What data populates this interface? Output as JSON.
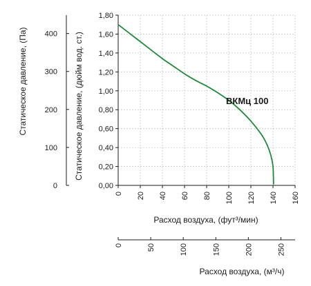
{
  "chart_data": {
    "type": "line",
    "series": [
      {
        "name": "ВКМц 100",
        "color": "#1e8a3a",
        "x": [
          0,
          10,
          20,
          30,
          40,
          50,
          60,
          70,
          80,
          90,
          100,
          110,
          120,
          130,
          135,
          138,
          140,
          140.5
        ],
        "values": [
          1.7,
          1.61,
          1.52,
          1.43,
          1.34,
          1.26,
          1.18,
          1.11,
          1.05,
          0.98,
          0.9,
          0.8,
          0.68,
          0.53,
          0.42,
          0.32,
          0.2,
          0.01
        ]
      }
    ],
    "xlabel": "Расход воздуха, (фут³/мин)",
    "xlim": [
      0,
      160
    ],
    "xticks": [
      "0",
      "20",
      "40",
      "60",
      "80",
      "100",
      "120",
      "140",
      "160"
    ],
    "ylabel": "Статическое давление, (дюйм вод. ст.)",
    "ylim": [
      0,
      1.8
    ],
    "yticks": [
      "0,00",
      "0,20",
      "0,40",
      "0,60",
      "0,80",
      "1,00",
      "1,20",
      "1,40",
      "1,60",
      "1,80"
    ],
    "secondary_x": {
      "label": "Расход воздуха, (м³/ч)",
      "ticks": [
        "0",
        "50",
        "100",
        "150",
        "200",
        "250"
      ],
      "tick_values": [
        0,
        50,
        100,
        150,
        200,
        250
      ],
      "range": [
        0,
        271.8
      ]
    },
    "secondary_y": {
      "label": "Статическое давление, (Па)",
      "ticks": [
        "0",
        "100",
        "200",
        "300",
        "400"
      ],
      "tick_values": [
        0,
        100,
        200,
        300,
        400
      ],
      "range": [
        0,
        448.3
      ]
    },
    "grid": true
  }
}
